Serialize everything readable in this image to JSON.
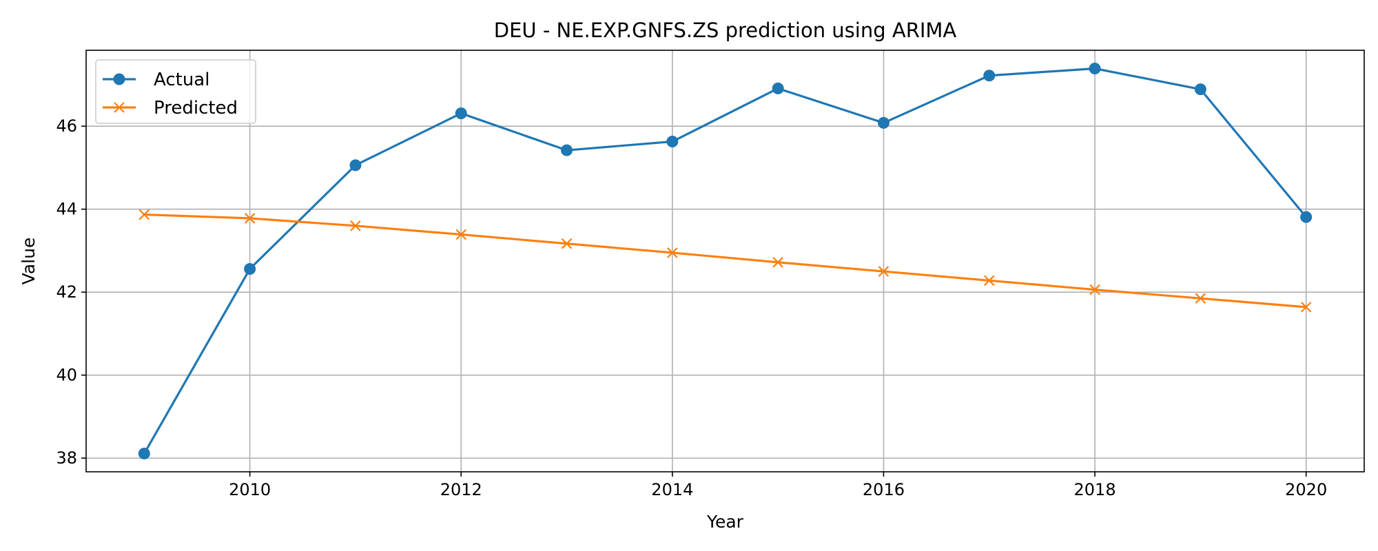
{
  "chart_data": {
    "type": "line",
    "title": "DEU - NE.EXP.GNFS.ZS prediction using ARIMA",
    "xlabel": "Year",
    "ylabel": "Value",
    "x": [
      2009,
      2010,
      2011,
      2012,
      2013,
      2014,
      2015,
      2016,
      2017,
      2018,
      2019,
      2020
    ],
    "xticks": [
      2010,
      2012,
      2014,
      2016,
      2018,
      2020
    ],
    "yticks": [
      38,
      40,
      42,
      44,
      46
    ],
    "xlim": [
      2008.45,
      2020.55
    ],
    "ylim": [
      37.67,
      47.83
    ],
    "grid": true,
    "legend_position": "top-left",
    "series": [
      {
        "name": "Actual",
        "color": "#1f77b4",
        "marker": "circle",
        "values": [
          38.11,
          42.56,
          45.06,
          46.31,
          45.42,
          45.63,
          46.91,
          46.08,
          47.22,
          47.39,
          46.89,
          43.81
        ]
      },
      {
        "name": "Predicted",
        "color": "#ff7f0e",
        "marker": "x",
        "values": [
          43.87,
          43.78,
          43.6,
          43.39,
          43.17,
          42.95,
          42.72,
          42.5,
          42.28,
          42.06,
          41.85,
          41.64
        ]
      }
    ]
  }
}
